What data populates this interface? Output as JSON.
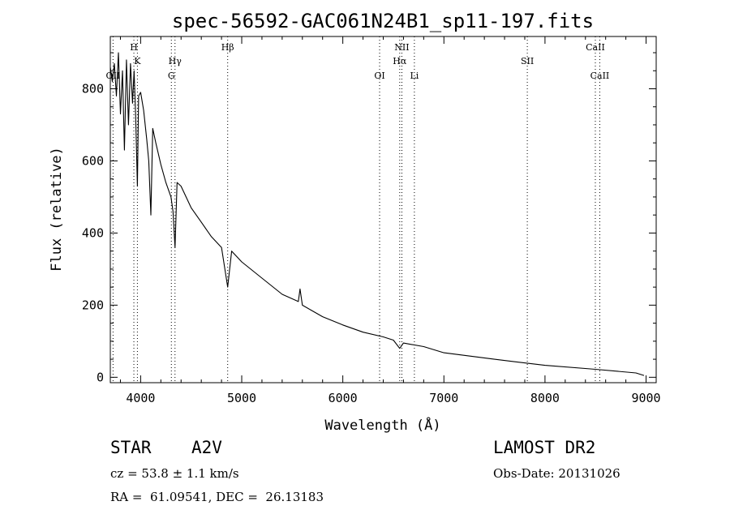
{
  "chart_data": {
    "type": "line",
    "title": "spec-56592-GAC061N24B1_sp11-197.fits",
    "xlabel": "Wavelength (Å)",
    "ylabel": "Flux (relative)",
    "xlim": [
      3700,
      9100
    ],
    "ylim": [
      -15,
      945
    ],
    "xticks": [
      4000,
      5000,
      6000,
      7000,
      8000,
      9000
    ],
    "yticks": [
      0,
      200,
      400,
      600,
      800
    ],
    "grid": false,
    "series": [
      {
        "x": [
          3700,
          3720,
          3740,
          3760,
          3780,
          3800,
          3820,
          3840,
          3860,
          3880,
          3900,
          3920,
          3935,
          3950,
          3968,
          3980,
          4000,
          4030,
          4060,
          4080,
          4101,
          4120,
          4150,
          4200,
          4250,
          4300,
          4320,
          4340,
          4360,
          4400,
          4500,
          4600,
          4700,
          4800,
          4861,
          4900,
          5000,
          5200,
          5400,
          5560,
          5577,
          5600,
          5800,
          6000,
          6200,
          6400,
          6500,
          6563,
          6600,
          6800,
          7000,
          7500,
          8000,
          8500,
          8900,
          8980
        ],
        "y": [
          860,
          820,
          870,
          780,
          900,
          730,
          850,
          630,
          880,
          700,
          870,
          760,
          850,
          730,
          530,
          780,
          790,
          740,
          660,
          600,
          450,
          690,
          650,
          590,
          540,
          500,
          460,
          360,
          540,
          530,
          470,
          430,
          390,
          360,
          250,
          350,
          320,
          275,
          230,
          210,
          245,
          200,
          168,
          145,
          125,
          112,
          103,
          80,
          95,
          85,
          68,
          50,
          33,
          22,
          12,
          5
        ]
      }
    ],
    "lines": [
      {
        "label": "OII",
        "wave": 3727,
        "row": 3
      },
      {
        "label": "H",
        "wave": 3933,
        "row": 1
      },
      {
        "label": "K",
        "wave": 3968,
        "row": 2
      },
      {
        "label": "Hγ",
        "wave": 4340,
        "row": 2
      },
      {
        "label": "G",
        "wave": 4304,
        "row": 3
      },
      {
        "label": "Hβ",
        "wave": 4861,
        "row": 1
      },
      {
        "label": "NII",
        "wave": 6584,
        "row": 1
      },
      {
        "label": "Hα",
        "wave": 6563,
        "row": 2
      },
      {
        "label": "OI",
        "wave": 6364,
        "row": 3
      },
      {
        "label": "Li",
        "wave": 6708,
        "row": 3
      },
      {
        "label": "SII",
        "wave": 7825,
        "row": 2
      },
      {
        "label": "CaII",
        "wave": 8498,
        "row": 1
      },
      {
        "label": "CaII",
        "wave": 8542,
        "row": 3
      }
    ]
  },
  "info": {
    "object_class": "STAR",
    "subclass": "A2V",
    "survey": "LAMOST DR2",
    "redshift": "cz = 53.8 ± 1.1 km/s",
    "obs_date": "Obs-Date: 20131026",
    "coords": "RA =  61.09541, DEC =  26.13183"
  }
}
